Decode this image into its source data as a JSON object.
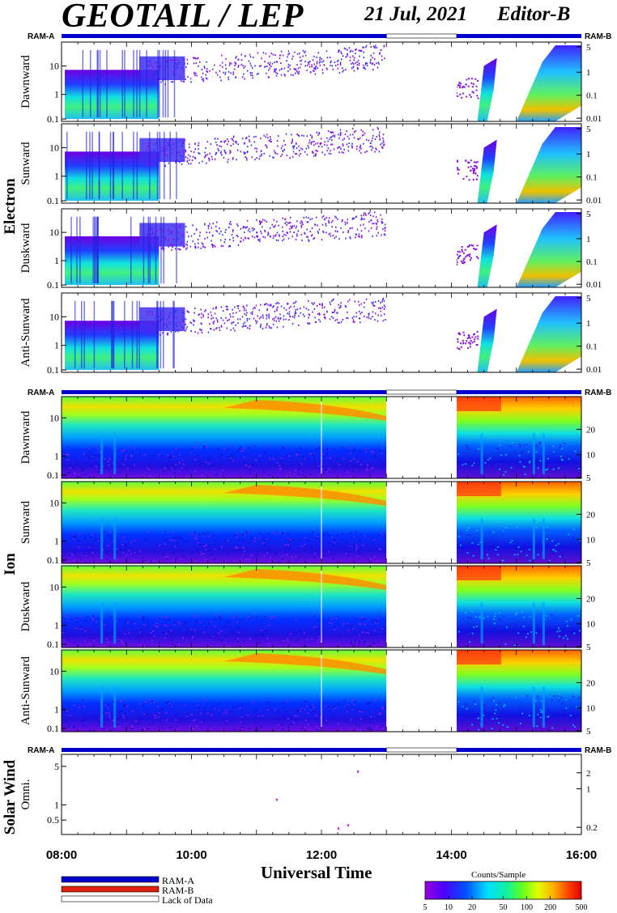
{
  "header": {
    "title": "GEOTAIL / LEP",
    "date": "21 Jul, 2021",
    "editor": "Editor-B"
  },
  "axis": {
    "x_title": "Universal Time",
    "x_ticks": [
      "08:00",
      "10:00",
      "12:00",
      "14:00",
      "16:00"
    ],
    "ram_a": "RAM-A",
    "ram_b": "RAM-B"
  },
  "groups": [
    {
      "name": "Electron"
    },
    {
      "name": "Ion"
    },
    {
      "name": "Solar Wind"
    }
  ],
  "legend": {
    "ram_a": "RAM-A",
    "ram_b": "RAM-B",
    "lack": "Lack of Data"
  },
  "colorbar": {
    "title": "Counts/Sample",
    "ticks": [
      "5",
      "10",
      "20",
      "50",
      "100",
      "200",
      "500"
    ]
  },
  "chart_data": {
    "type": "heatmap",
    "x_range_hours_ut": [
      8,
      16
    ],
    "data_gap_ut": [
      "13:00",
      "14:05"
    ],
    "colorbar_range": [
      5,
      500
    ],
    "colorbar_scale": "log",
    "panels": [
      {
        "group": "Electron",
        "label": "Dawnward",
        "left_ticks": [
          "10",
          "1",
          "0.1"
        ],
        "right_ticks": [
          "5",
          "1",
          "0.1",
          "0.01"
        ]
      },
      {
        "group": "Electron",
        "label": "Sunward",
        "left_ticks": [
          "10",
          "1",
          "0.1"
        ],
        "right_ticks": [
          "5",
          "1",
          "0.1",
          "0.01"
        ]
      },
      {
        "group": "Electron",
        "label": "Duskward",
        "left_ticks": [
          "10",
          "1",
          "0.1"
        ],
        "right_ticks": [
          "5",
          "1",
          "0.1",
          "0.01"
        ]
      },
      {
        "group": "Electron",
        "label": "Anti-Sunward",
        "left_ticks": [
          "10",
          "1",
          "0.1"
        ],
        "right_ticks": [
          "5",
          "1",
          "0.1",
          "0.01"
        ]
      },
      {
        "group": "Ion",
        "label": "Dawnward",
        "left_ticks": [
          "10",
          "1",
          "0.1"
        ],
        "right_ticks": [
          "20",
          "10",
          "5"
        ]
      },
      {
        "group": "Ion",
        "label": "Sunward",
        "left_ticks": [
          "10",
          "1",
          "0.1"
        ],
        "right_ticks": [
          "20",
          "10",
          "5"
        ]
      },
      {
        "group": "Ion",
        "label": "Duskward",
        "left_ticks": [
          "10",
          "1",
          "0.1"
        ],
        "right_ticks": [
          "20",
          "10",
          "5"
        ]
      },
      {
        "group": "Ion",
        "label": "Anti-Sunward",
        "left_ticks": [
          "10",
          "1",
          "0.1"
        ],
        "right_ticks": [
          "20",
          "10",
          "5"
        ]
      },
      {
        "group": "Solar Wind",
        "label": "Omni.",
        "left_ticks": [
          "5",
          "1",
          "0.5"
        ],
        "right_ticks": [
          "2",
          "1",
          "0.2"
        ]
      }
    ]
  }
}
